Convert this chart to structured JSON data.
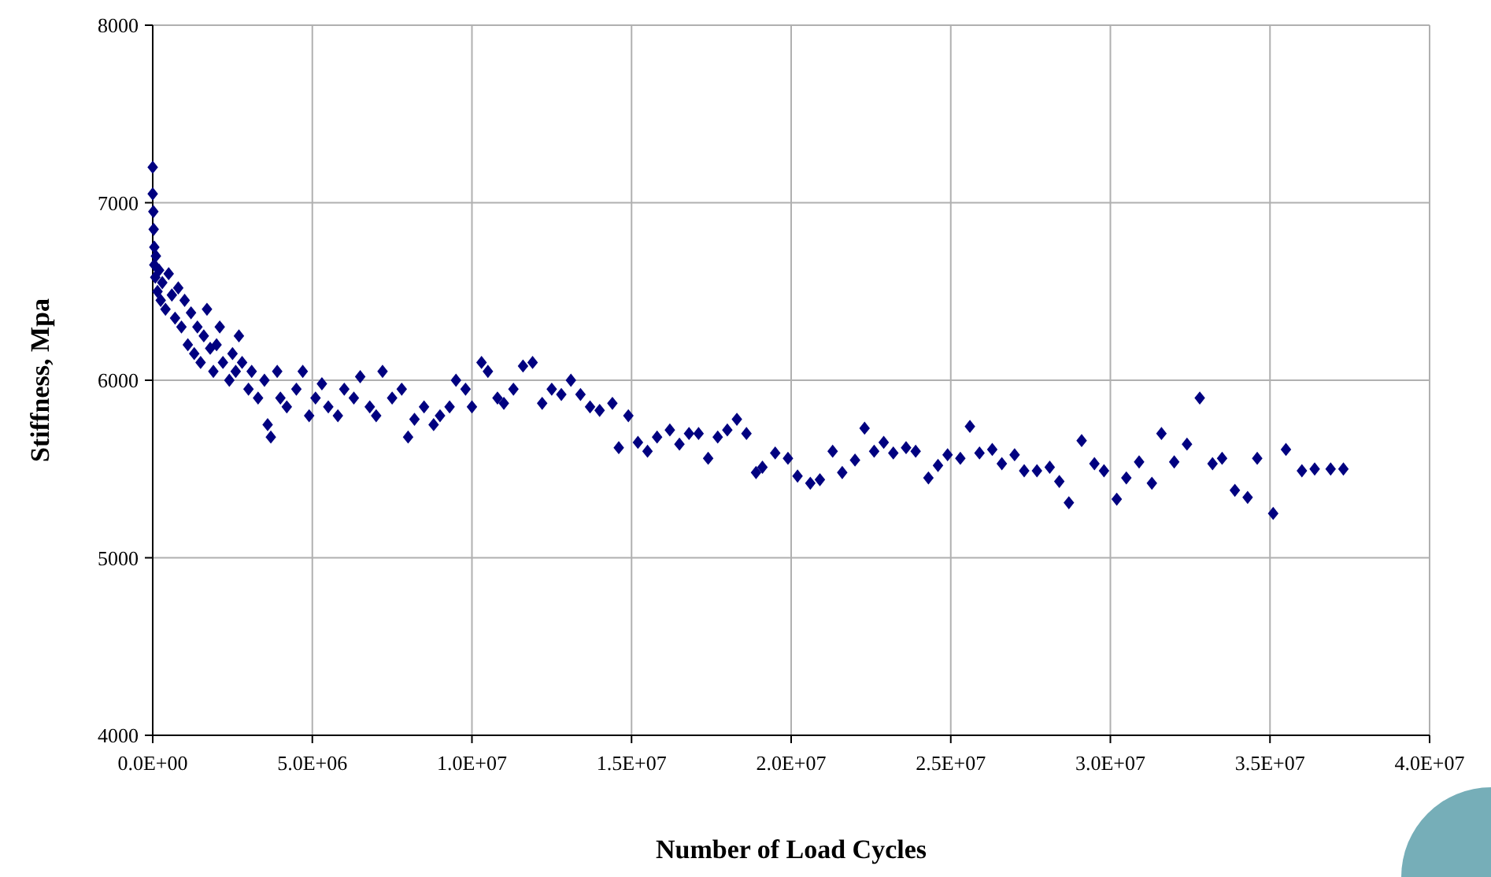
{
  "chart_data": {
    "type": "scatter",
    "xlabel": "Number of Load Cycles",
    "ylabel": "Stiffness, Mpa",
    "marker": "diamond",
    "grid": true,
    "xlim": [
      0,
      40000000.0
    ],
    "xticks": [
      {
        "value": 0,
        "label": "0.0E+00"
      },
      {
        "value": 5000000.0,
        "label": "5.0E+06"
      },
      {
        "value": 10000000.0,
        "label": "1.0E+07"
      },
      {
        "value": 15000000.0,
        "label": "1.5E+07"
      },
      {
        "value": 20000000.0,
        "label": "2.0E+07"
      },
      {
        "value": 25000000.0,
        "label": "2.5E+07"
      },
      {
        "value": 30000000.0,
        "label": "3.0E+07"
      },
      {
        "value": 35000000.0,
        "label": "3.5E+07"
      },
      {
        "value": 40000000.0,
        "label": "4.0E+07"
      }
    ],
    "ylim": [
      4000,
      8000
    ],
    "yticks": [
      4000,
      5000,
      6000,
      7000,
      8000
    ],
    "series": [
      {
        "color": "#000080",
        "x": [
          0,
          0,
          20000.0,
          30000.0,
          50000.0,
          50000.0,
          80000.0,
          100000.0,
          150000.0,
          200000.0,
          250000.0,
          300000.0,
          400000.0,
          500000.0,
          600000.0,
          700000.0,
          800000.0,
          900000.0,
          1000000.0,
          1100000.0,
          1200000.0,
          1300000.0,
          1400000.0,
          1500000.0,
          1600000.0,
          1700000.0,
          1800000.0,
          1900000.0,
          2000000.0,
          2100000.0,
          2200000.0,
          2400000.0,
          2500000.0,
          2600000.0,
          2700000.0,
          2800000.0,
          3000000.0,
          3100000.0,
          3300000.0,
          3500000.0,
          3600000.0,
          3700000.0,
          3900000.0,
          4000000.0,
          4200000.0,
          4500000.0,
          4700000.0,
          4900000.0,
          5100000.0,
          5300000.0,
          5500000.0,
          5800000.0,
          6000000.0,
          6300000.0,
          6500000.0,
          6800000.0,
          7000000.0,
          7200000.0,
          7500000.0,
          7800000.0,
          8000000.0,
          8200000.0,
          8500000.0,
          8800000.0,
          9000000.0,
          9300000.0,
          9500000.0,
          9800000.0,
          10000000.0,
          10300000.0,
          10500000.0,
          10800000.0,
          11000000.0,
          11300000.0,
          11600000.0,
          11900000.0,
          12200000.0,
          12500000.0,
          12800000.0,
          13100000.0,
          13400000.0,
          13700000.0,
          14000000.0,
          14400000.0,
          14600000.0,
          14900000.0,
          15200000.0,
          15500000.0,
          15800000.0,
          16200000.0,
          16500000.0,
          16800000.0,
          17100000.0,
          17400000.0,
          17700000.0,
          18000000.0,
          18300000.0,
          18600000.0,
          18900000.0,
          19100000.0,
          19500000.0,
          19900000.0,
          20200000.0,
          20600000.0,
          20900000.0,
          21300000.0,
          21600000.0,
          22000000.0,
          22300000.0,
          22600000.0,
          22900000.0,
          23200000.0,
          23600000.0,
          23900000.0,
          24300000.0,
          24600000.0,
          24900000.0,
          25300000.0,
          25600000.0,
          25900000.0,
          26300000.0,
          26600000.0,
          27000000.0,
          27300000.0,
          27700000.0,
          28100000.0,
          28400000.0,
          28700000.0,
          29100000.0,
          29500000.0,
          29800000.0,
          30200000.0,
          30500000.0,
          30900000.0,
          31300000.0,
          31600000.0,
          32000000.0,
          32400000.0,
          32800000.0,
          33200000.0,
          33500000.0,
          33900000.0,
          34300000.0,
          34600000.0,
          35100000.0,
          35500000.0,
          36000000.0,
          36400000.0,
          36900000.0,
          37300000.0
        ],
        "values": [
          7200,
          7050,
          6950,
          6850,
          6750,
          6650,
          6580,
          6700,
          6500,
          6620,
          6450,
          6550,
          6400,
          6600,
          6480,
          6350,
          6520,
          6300,
          6450,
          6200,
          6380,
          6150,
          6300,
          6100,
          6250,
          6400,
          6180,
          6050,
          6200,
          6300,
          6100,
          6000,
          6150,
          6050,
          6250,
          6100,
          5950,
          6050,
          5900,
          6000,
          5750,
          5680,
          6050,
          5900,
          5850,
          5950,
          6050,
          5800,
          5900,
          5980,
          5850,
          5800,
          5950,
          5900,
          6020,
          5850,
          5800,
          6050,
          5900,
          5950,
          5680,
          5780,
          5850,
          5750,
          5800,
          5850,
          6000,
          5950,
          5850,
          6100,
          6050,
          5900,
          5870,
          5950,
          6080,
          6100,
          5870,
          5950,
          5920,
          6000,
          5920,
          5850,
          5830,
          5870,
          5620,
          5800,
          5650,
          5600,
          5680,
          5720,
          5640,
          5700,
          5700,
          5560,
          5680,
          5720,
          5780,
          5700,
          5480,
          5510,
          5590,
          5560,
          5460,
          5420,
          5440,
          5600,
          5480,
          5550,
          5730,
          5600,
          5650,
          5590,
          5620,
          5600,
          5450,
          5520,
          5580,
          5560,
          5740,
          5590,
          5610,
          5530,
          5580,
          5490,
          5490,
          5510,
          5430,
          5310,
          5660,
          5530,
          5490,
          5330,
          5450,
          5540,
          5420,
          5700,
          5540,
          5640,
          5900,
          5530,
          5560,
          5380,
          5340,
          5560,
          5250,
          5610,
          5490,
          5500,
          5500,
          5500
        ]
      }
    ]
  }
}
